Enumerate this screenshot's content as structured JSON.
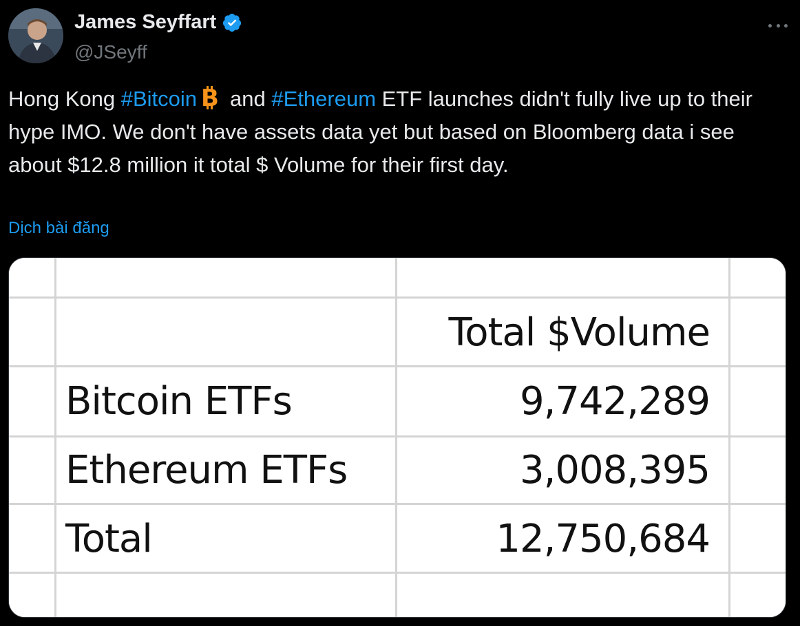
{
  "author": {
    "display_name": "James Seyffart",
    "handle": "@JSeyff",
    "verified": true,
    "verified_color": "#1d9bf0"
  },
  "tweet": {
    "segments": [
      {
        "text": "Hong Kong ",
        "type": "text"
      },
      {
        "text": "#Bitcoin",
        "type": "hashtag"
      },
      {
        "icon": "bitcoin-emoji-icon",
        "type": "emoji"
      },
      {
        "text": "and ",
        "type": "text"
      },
      {
        "text": "#Ethereum",
        "type": "hashtag"
      },
      {
        "text": " ETF launches didn't fully live up to their hype IMO. We don't have assets data yet but based on Bloomberg data i see about $12.8 million it total $ Volume for their first day.",
        "type": "text"
      }
    ],
    "seg0": "Hong Kong ",
    "seg1": "#Bitcoin",
    "seg2": "and ",
    "seg3": "#Ethereum",
    "seg4": " ETF launches didn't fully live up to their hype IMO. We don't have assets data yet but based on Bloomberg data i see about $12.8 million it total $ Volume for their first day.",
    "translate_label": "Dịch bài đăng",
    "hashtag_color": "#1d9bf0"
  },
  "table": {
    "header": "Total $Volume",
    "rows": [
      {
        "label": "Bitcoin ETFs",
        "value": "9,742,289"
      },
      {
        "label": "Ethereum ETFs",
        "value": "3,008,395"
      },
      {
        "label": "Total",
        "value": "12,750,684"
      }
    ]
  },
  "icons": {
    "more": "more-options-icon",
    "verified": "verified-badge-icon",
    "bitcoin": "bitcoin-emoji-icon"
  }
}
